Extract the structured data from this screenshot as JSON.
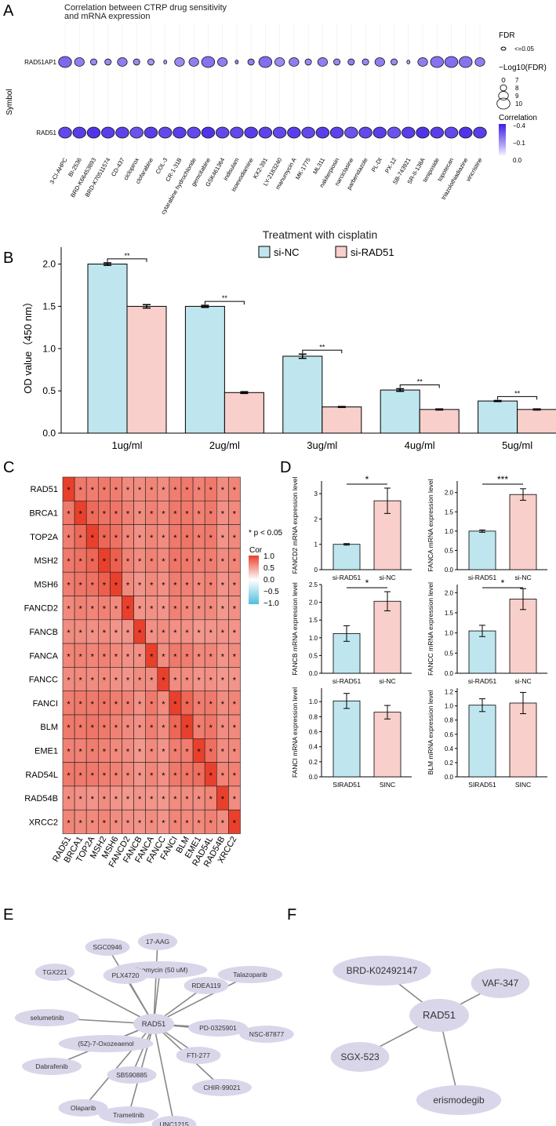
{
  "panel_letters": [
    "A",
    "B",
    "C",
    "D",
    "E",
    "F"
  ],
  "star_p_label": "* p < 0.05",
  "chart_data": [
    {
      "id": "A",
      "type": "scatter",
      "title": "Correlation between CTRP drug sensitivity and mRNA expression",
      "ylabel": "Symbol",
      "symbols": [
        "RAD51AP1",
        "RAD51"
      ],
      "drugs": [
        "3-Cl-AHPC",
        "BI-2536",
        "BRD-K66453893",
        "BRD-K70511574",
        "CD-437",
        "ciclopirox",
        "clofarabine",
        "COL-3",
        "CR-1-31B",
        "cytarabine hydrochloride",
        "gemcitabine",
        "GSK461364",
        "indisulam",
        "isoevodiamine",
        "KX2-391",
        "LY-2183240",
        "manumycin A",
        "MK-1775",
        "ML311",
        "nakiterpiosin",
        "narciclasine",
        "parbendazole",
        "PL-DI",
        "PX-12",
        "SB-743921",
        "SR-II-138A",
        "teniposide",
        "topotecan",
        "triazolothiadiazine",
        "vincristine"
      ],
      "rows": [
        {
          "symbol": "RAD51AP1",
          "correlation": [
            -0.26,
            -0.22,
            -0.2,
            -0.2,
            -0.22,
            -0.2,
            -0.18,
            -0.16,
            -0.2,
            -0.22,
            -0.24,
            -0.22,
            -0.2,
            -0.22,
            -0.25,
            -0.2,
            -0.22,
            -0.2,
            -0.22,
            -0.2,
            -0.22,
            -0.2,
            -0.22,
            -0.2,
            -0.15,
            -0.22,
            -0.24,
            -0.25,
            -0.24,
            -0.22
          ],
          "neg_log10_fdr": [
            10,
            9,
            8,
            8,
            9,
            8,
            8,
            7,
            9,
            9,
            10,
            9,
            7,
            8,
            10,
            9,
            9,
            8,
            9,
            8,
            8,
            8,
            9,
            8,
            7,
            9,
            10,
            10,
            10,
            9
          ]
        },
        {
          "symbol": "RAD51",
          "correlation": [
            -0.32,
            -0.34,
            -0.36,
            -0.34,
            -0.33,
            -0.3,
            -0.34,
            -0.32,
            -0.34,
            -0.32,
            -0.36,
            -0.32,
            -0.32,
            -0.34,
            -0.33,
            -0.32,
            -0.34,
            -0.32,
            -0.34,
            -0.33,
            -0.3,
            -0.32,
            -0.34,
            -0.3,
            -0.34,
            -0.36,
            -0.34,
            -0.32,
            -0.36,
            -0.34
          ],
          "neg_log10_fdr": [
            10,
            10,
            10,
            10,
            10,
            10,
            10,
            10,
            10,
            10,
            10,
            10,
            10,
            10,
            10,
            10,
            10,
            10,
            10,
            10,
            10,
            10,
            10,
            10,
            10,
            10,
            10,
            10,
            10,
            10
          ]
        }
      ],
      "legend_fdr": {
        "title": "FDR",
        "label": "<=0.05"
      },
      "legend_size": {
        "title": "−Log10(FDR)",
        "values": [
          "7",
          "8",
          "9",
          "10"
        ]
      },
      "legend_color": {
        "title": "Correlation",
        "ticks": [
          "−0.4",
          "−0.1",
          "0.0"
        ],
        "colors": [
          "#3d1fe6",
          "#f6f2fe"
        ]
      }
    },
    {
      "id": "B",
      "type": "bar",
      "title": "Treatment with cisplatin",
      "ylabel": "OD value（450 nm）",
      "categories": [
        "1ug/ml",
        "2ug/ml",
        "3ug/ml",
        "4ug/ml",
        "5ug/ml"
      ],
      "ylim": [
        0,
        2.2
      ],
      "yticks": [
        "0.0",
        "0.5",
        "1.0",
        "1.5",
        "2.0"
      ],
      "series": [
        {
          "name": "si-NC",
          "color": "#bfe6ee",
          "values": [
            2.0,
            1.5,
            0.91,
            0.51,
            0.38
          ],
          "errors": [
            0.015,
            0.012,
            0.025,
            0.015,
            0.006
          ]
        },
        {
          "name": "si-RAD51",
          "color": "#f8cfca",
          "values": [
            1.5,
            0.48,
            0.31,
            0.28,
            0.28
          ],
          "errors": [
            0.02,
            0.01,
            0.005,
            0.006,
            0.006
          ]
        }
      ],
      "significance": [
        "**",
        "**",
        "**",
        "**",
        "**"
      ]
    },
    {
      "id": "C",
      "type": "heatmap",
      "labels": [
        "RAD51",
        "BRCA1",
        "TOP2A",
        "MSH2",
        "MSH6",
        "FANCD2",
        "FANCB",
        "FANCA",
        "FANCC",
        "FANCI",
        "BLM",
        "EME1",
        "RAD54L",
        "RAD54B",
        "XRCC2"
      ],
      "values": [
        [
          1.0,
          0.7,
          0.68,
          0.7,
          0.68,
          0.62,
          0.6,
          0.64,
          0.6,
          0.68,
          0.7,
          0.66,
          0.7,
          0.6,
          0.64
        ],
        [
          0.7,
          1.0,
          0.78,
          0.74,
          0.72,
          0.66,
          0.6,
          0.66,
          0.62,
          0.7,
          0.7,
          0.66,
          0.7,
          0.58,
          0.62
        ],
        [
          0.68,
          0.78,
          1.0,
          0.8,
          0.74,
          0.64,
          0.58,
          0.64,
          0.6,
          0.7,
          0.72,
          0.68,
          0.7,
          0.56,
          0.62
        ],
        [
          0.7,
          0.74,
          0.8,
          1.0,
          0.84,
          0.66,
          0.6,
          0.66,
          0.62,
          0.72,
          0.7,
          0.66,
          0.68,
          0.6,
          0.64
        ],
        [
          0.68,
          0.72,
          0.74,
          0.84,
          1.0,
          0.62,
          0.56,
          0.62,
          0.58,
          0.68,
          0.66,
          0.62,
          0.66,
          0.56,
          0.6
        ],
        [
          0.62,
          0.66,
          0.64,
          0.66,
          0.62,
          1.0,
          0.56,
          0.58,
          0.56,
          0.66,
          0.62,
          0.6,
          0.62,
          0.54,
          0.58
        ],
        [
          0.6,
          0.6,
          0.58,
          0.6,
          0.56,
          0.56,
          1.0,
          0.58,
          0.6,
          0.58,
          0.58,
          0.54,
          0.56,
          0.56,
          0.56
        ],
        [
          0.64,
          0.66,
          0.64,
          0.66,
          0.62,
          0.58,
          0.58,
          1.0,
          0.6,
          0.7,
          0.68,
          0.62,
          0.64,
          0.56,
          0.6
        ],
        [
          0.6,
          0.62,
          0.6,
          0.62,
          0.58,
          0.56,
          0.6,
          0.6,
          1.0,
          0.6,
          0.6,
          0.56,
          0.58,
          0.54,
          0.56
        ],
        [
          0.68,
          0.7,
          0.7,
          0.72,
          0.68,
          0.66,
          0.58,
          0.7,
          0.6,
          1.0,
          0.8,
          0.68,
          0.7,
          0.6,
          0.64
        ],
        [
          0.7,
          0.7,
          0.72,
          0.7,
          0.66,
          0.62,
          0.58,
          0.68,
          0.6,
          0.8,
          1.0,
          0.68,
          0.72,
          0.6,
          0.62
        ],
        [
          0.66,
          0.66,
          0.68,
          0.66,
          0.62,
          0.6,
          0.54,
          0.62,
          0.56,
          0.68,
          0.68,
          1.0,
          0.76,
          0.6,
          0.62
        ],
        [
          0.7,
          0.7,
          0.7,
          0.68,
          0.66,
          0.62,
          0.56,
          0.64,
          0.58,
          0.7,
          0.72,
          0.76,
          1.0,
          0.64,
          0.66
        ],
        [
          0.6,
          0.58,
          0.56,
          0.6,
          0.56,
          0.54,
          0.56,
          0.56,
          0.54,
          0.6,
          0.6,
          0.6,
          0.64,
          1.0,
          0.6
        ],
        [
          0.64,
          0.62,
          0.62,
          0.64,
          0.6,
          0.58,
          0.56,
          0.6,
          0.56,
          0.64,
          0.62,
          0.62,
          0.66,
          0.6,
          1.0
        ]
      ],
      "star": "*",
      "legend": {
        "title": "Cor",
        "ticks": [
          "1.0",
          "0.5",
          "0.0",
          "−0.5",
          "−1.0"
        ]
      }
    },
    {
      "id": "D",
      "type": "bar",
      "subplots": [
        {
          "ylabel": "FANCD2 mRNA expression level",
          "categories": [
            "si-RAD51",
            "si-NC"
          ],
          "values": [
            1.0,
            2.72
          ],
          "errors": [
            0.03,
            0.5
          ],
          "ylim": [
            0,
            3.5
          ],
          "yticks": [
            "0",
            "1",
            "2",
            "3"
          ],
          "sig": "*"
        },
        {
          "ylabel": "FANCA mRNA expression level",
          "categories": [
            "si-RAD51",
            "si-NC"
          ],
          "values": [
            1.0,
            1.95
          ],
          "errors": [
            0.03,
            0.15
          ],
          "ylim": [
            0,
            2.3
          ],
          "yticks": [
            "0.0",
            "0.5",
            "1.0",
            "1.5",
            "2.0"
          ],
          "sig": "***"
        },
        {
          "ylabel": "FANCB mRNA expression level",
          "categories": [
            "si-RAD51",
            "si-NC"
          ],
          "values": [
            1.12,
            2.03
          ],
          "errors": [
            0.22,
            0.27
          ],
          "ylim": [
            0,
            2.5
          ],
          "yticks": [
            "0.0",
            "0.5",
            "1.0",
            "1.5",
            "2.0",
            "2.5"
          ],
          "sig": "*"
        },
        {
          "ylabel": "FANCC mRNA expression level",
          "categories": [
            "si-RAD51",
            "si-NC"
          ],
          "values": [
            1.05,
            1.84
          ],
          "errors": [
            0.14,
            0.26
          ],
          "ylim": [
            0,
            2.2
          ],
          "yticks": [
            "0.0",
            "0.5",
            "1.0",
            "1.5",
            "2.0"
          ],
          "sig": "*"
        },
        {
          "ylabel": "FANCI mRNA expression level",
          "categories": [
            "SIRAD51",
            "SINC"
          ],
          "values": [
            1.01,
            0.86
          ],
          "errors": [
            0.1,
            0.09
          ],
          "ylim": [
            0,
            1.18
          ],
          "yticks": [
            "0.0",
            "0.2",
            "0.4",
            "0.6",
            "0.8",
            "1.0"
          ],
          "sig": ""
        },
        {
          "ylabel": "BLM mRNA expression level",
          "categories": [
            "SIRAD51",
            "SINC"
          ],
          "values": [
            1.01,
            1.04
          ],
          "errors": [
            0.09,
            0.15
          ],
          "ylim": [
            0,
            1.25
          ],
          "yticks": [
            "0.0",
            "0.2",
            "0.4",
            "0.6",
            "0.8",
            "1.0",
            "1.2"
          ],
          "sig": ""
        }
      ],
      "colors": [
        "#bfe6ee",
        "#f8cfca"
      ]
    }
  ],
  "network_E": {
    "center": "RAD51",
    "nodes": [
      "SGC0946",
      "17-AAG",
      "Bleomycin (50 uM)",
      "PLX4720",
      "TGX221",
      "RDEA119",
      "Talazoparib",
      "selumetinib",
      "PD-0325901",
      "NSC-87877",
      "(5Z)-7-Oxozeaenol",
      "Dabrafenib",
      "FTI-277",
      "SB590885",
      "Olaparib",
      "CHIR-99021",
      "Trametinib",
      "UNC1215"
    ]
  },
  "network_F": {
    "center": "RAD51",
    "nodes": [
      "BRD-K02492147",
      "VAF-347",
      "SGX-523",
      "erismodegib"
    ]
  }
}
